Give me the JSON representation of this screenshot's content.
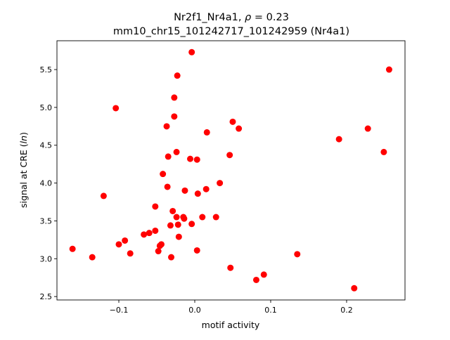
{
  "chart_data": {
    "type": "scatter",
    "title_line1_prefix": "Nr2f1_Nr4a1, ",
    "title_rho_symbol": "ρ",
    "title_rho_value": " = 0.23",
    "title_line2": "mm10_chr15_101242717_101242959 (Nr4a1)",
    "xlabel": "motif activity",
    "ylabel_prefix": "signal at CRE (",
    "ylabel_italic": "ln",
    "ylabel_suffix": ")",
    "xlim": [
      -0.1815,
      0.2769
    ],
    "ylim": [
      2.455,
      5.881
    ],
    "xticks": [
      -0.1,
      0.0,
      0.1,
      0.2
    ],
    "xtick_labels": [
      "−0.1",
      "0.0",
      "0.1",
      "0.2"
    ],
    "yticks": [
      2.5,
      3.0,
      3.5,
      4.0,
      4.5,
      5.0,
      5.5
    ],
    "ytick_labels": [
      "2.5",
      "3.0",
      "3.5",
      "4.0",
      "4.5",
      "5.0",
      "5.5"
    ],
    "grid": false,
    "marker_color": "#ff0000",
    "points": [
      [
        -0.004,
        5.73
      ],
      [
        0.256,
        5.5
      ],
      [
        -0.023,
        5.42
      ],
      [
        -0.027,
        5.13
      ],
      [
        -0.104,
        4.99
      ],
      [
        -0.027,
        4.88
      ],
      [
        -0.037,
        4.75
      ],
      [
        0.05,
        4.81
      ],
      [
        0.058,
        4.72
      ],
      [
        0.016,
        4.67
      ],
      [
        0.228,
        4.72
      ],
      [
        0.19,
        4.58
      ],
      [
        0.249,
        4.41
      ],
      [
        -0.024,
        4.41
      ],
      [
        0.046,
        4.37
      ],
      [
        -0.035,
        4.35
      ],
      [
        -0.006,
        4.32
      ],
      [
        0.003,
        4.31
      ],
      [
        -0.042,
        4.12
      ],
      [
        0.033,
        4.0
      ],
      [
        -0.036,
        3.95
      ],
      [
        -0.013,
        3.9
      ],
      [
        0.015,
        3.92
      ],
      [
        0.004,
        3.86
      ],
      [
        -0.12,
        3.83
      ],
      [
        -0.052,
        3.69
      ],
      [
        -0.029,
        3.63
      ],
      [
        -0.024,
        3.55
      ],
      [
        -0.015,
        3.55
      ],
      [
        -0.014,
        3.53
      ],
      [
        0.01,
        3.55
      ],
      [
        0.028,
        3.55
      ],
      [
        -0.032,
        3.44
      ],
      [
        -0.022,
        3.45
      ],
      [
        -0.004,
        3.46
      ],
      [
        -0.052,
        3.37
      ],
      [
        -0.06,
        3.34
      ],
      [
        -0.067,
        3.32
      ],
      [
        -0.021,
        3.29
      ],
      [
        -0.092,
        3.24
      ],
      [
        -0.1,
        3.19
      ],
      [
        -0.044,
        3.19
      ],
      [
        -0.046,
        3.17
      ],
      [
        -0.161,
        3.13
      ],
      [
        -0.048,
        3.1
      ],
      [
        0.003,
        3.11
      ],
      [
        -0.085,
        3.07
      ],
      [
        -0.135,
        3.02
      ],
      [
        -0.031,
        3.02
      ],
      [
        0.135,
        3.06
      ],
      [
        0.047,
        2.88
      ],
      [
        0.091,
        2.79
      ],
      [
        0.081,
        2.72
      ],
      [
        0.21,
        2.61
      ]
    ]
  }
}
